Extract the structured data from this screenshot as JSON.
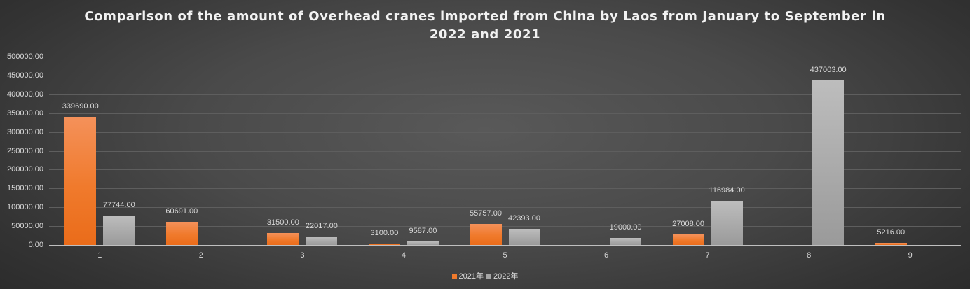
{
  "chart_data": {
    "type": "bar",
    "title": "Comparison of the amount of Overhead cranes imported from China by Laos from January to September in 2022 and 2021",
    "title_lines": [
      "Comparison of the amount of Overhead cranes imported from China by Laos from January to September in",
      "2022 and 2021"
    ],
    "xlabel": "",
    "ylabel": "",
    "categories": [
      "1",
      "2",
      "3",
      "4",
      "5",
      "6",
      "7",
      "8",
      "9"
    ],
    "series": [
      {
        "name": "2021年",
        "color": "#f07a2c",
        "values": [
          339690.0,
          60691.0,
          31500.0,
          3100.0,
          55757.0,
          null,
          27008.0,
          null,
          5216.0
        ]
      },
      {
        "name": "2022年",
        "color": "#a6a6a6",
        "values": [
          77744.0,
          null,
          22017.0,
          9587.0,
          42393.0,
          19000.0,
          116984.0,
          437003.0,
          null
        ]
      }
    ],
    "ylim": [
      0,
      500000
    ],
    "yticks": [
      "0.00",
      "50000.00",
      "100000.00",
      "150000.00",
      "200000.00",
      "250000.00",
      "300000.00",
      "350000.00",
      "400000.00",
      "450000.00",
      "500000.00"
    ],
    "grid": true,
    "legend_position": "bottom",
    "data_labels": true
  }
}
